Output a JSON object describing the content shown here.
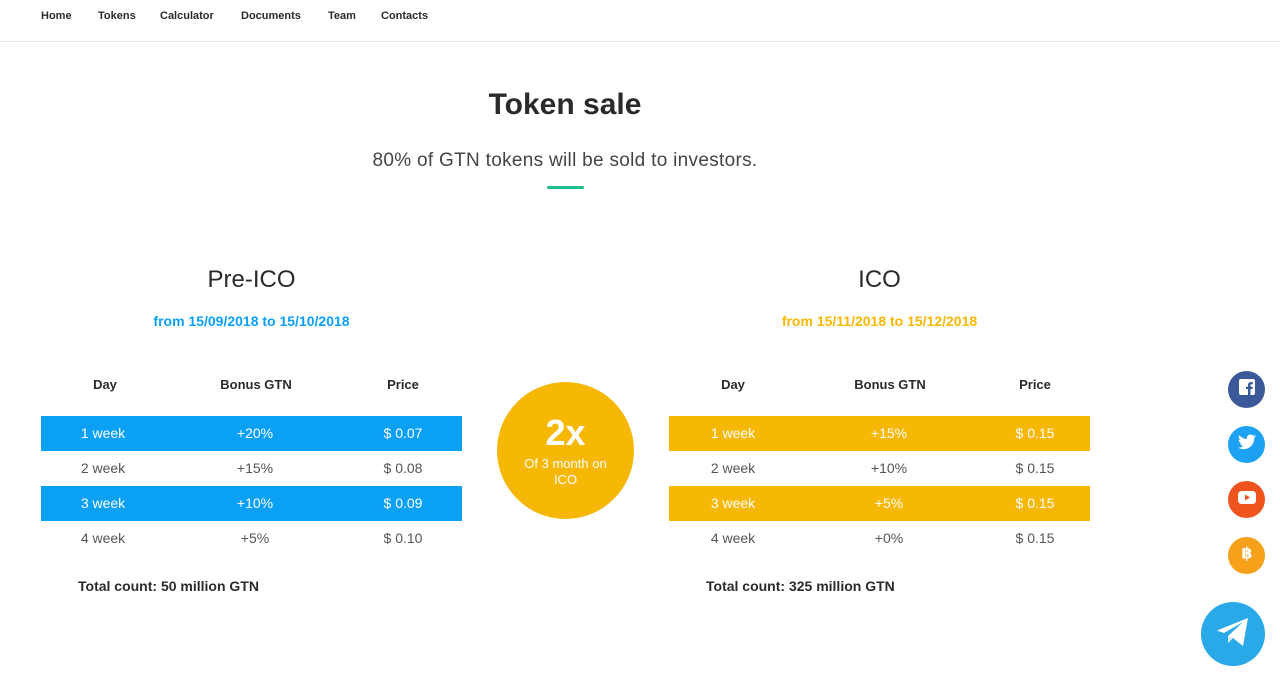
{
  "nav": {
    "items": [
      {
        "label": "Home"
      },
      {
        "label": "Tokens"
      },
      {
        "label": "Calculator"
      },
      {
        "label": "Documents"
      },
      {
        "label": "Team"
      },
      {
        "label": "Contacts"
      }
    ]
  },
  "header": {
    "title": "Token sale",
    "subtitle": "80% of GTN tokens will be sold to investors."
  },
  "pre_ico": {
    "title": "Pre-ICO",
    "dates": "from 15/09/2018 to 15/10/2018",
    "columns": [
      "Day",
      "Bonus GTN",
      "Price"
    ],
    "rows": [
      {
        "day": "1 week",
        "bonus": "+20%",
        "price": "$ 0.07"
      },
      {
        "day": "2 week",
        "bonus": "+15%",
        "price": "$ 0.08"
      },
      {
        "day": "3 week",
        "bonus": "+10%",
        "price": "$ 0.09"
      },
      {
        "day": "4 week",
        "bonus": "+5%",
        "price": "$ 0.10"
      }
    ],
    "total": "Total count: 50 million GTN",
    "accent": "#0aa0f4"
  },
  "circle": {
    "big": "2x",
    "small": "Of 3 month on ICO",
    "color": "#f7b705"
  },
  "ico": {
    "title": "ICO",
    "dates": "from 15/11/2018 to 15/12/2018",
    "columns": [
      "Day",
      "Bonus GTN",
      "Price"
    ],
    "rows": [
      {
        "day": "1 week",
        "bonus": "+15%",
        "price": "$ 0.15"
      },
      {
        "day": "2 week",
        "bonus": "+10%",
        "price": "$ 0.15"
      },
      {
        "day": "3 week",
        "bonus": "+5%",
        "price": "$ 0.15"
      },
      {
        "day": "4 week",
        "bonus": "+0%",
        "price": "$ 0.15"
      }
    ],
    "total": "Total count: 325 million GTN",
    "accent": "#f7b705"
  },
  "social": {
    "icons": [
      "facebook-icon",
      "twitter-icon",
      "youtube-icon",
      "bitcoin-icon",
      "telegram-icon"
    ],
    "colors": {
      "facebook": "#3b5998",
      "twitter": "#1da1f2",
      "youtube": "#f0541e",
      "bitcoin": "#f7a11a",
      "telegram": "#2aa9e8"
    }
  }
}
